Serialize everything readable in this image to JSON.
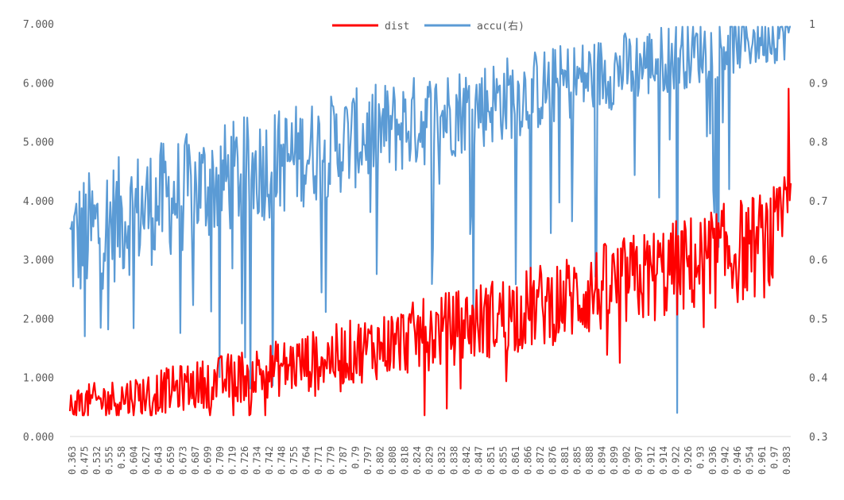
{
  "chart_data": {
    "type": "line",
    "title": "",
    "xlabel": "",
    "ylabel": "",
    "legend_position": "top-center",
    "grid": false,
    "y_left_range": [
      0,
      7
    ],
    "y_right_range": [
      0.3,
      1.0
    ],
    "y_left_ticks": [
      "0.000",
      "1.000",
      "2.000",
      "3.000",
      "4.000",
      "5.000",
      "6.000",
      "7.000"
    ],
    "y_right_ticks": [
      "0.3",
      "0.4",
      "0.5",
      "0.6",
      "0.7",
      "0.8",
      "0.9",
      "1"
    ],
    "x_tick_labels": [
      "0.363",
      "0.475",
      "0.532",
      "0.555",
      "0.58",
      "0.604",
      "0.627",
      "0.643",
      "0.659",
      "0.673",
      "0.687",
      "0.699",
      "0.709",
      "0.719",
      "0.726",
      "0.734",
      "0.742",
      "0.748",
      "0.755",
      "0.764",
      "0.771",
      "0.779",
      "0.787",
      "0.79",
      "0.797",
      "0.802",
      "0.808",
      "0.818",
      "0.824",
      "0.829",
      "0.832",
      "0.838",
      "0.842",
      "0.847",
      "0.851",
      "0.855",
      "0.861",
      "0.866",
      "0.872",
      "0.876",
      "0.881",
      "0.885",
      "0.888",
      "0.894",
      "0.899",
      "0.902",
      "0.907",
      "0.912",
      "0.914",
      "0.922",
      "0.926",
      "0.93",
      "0.936",
      "0.942",
      "0.946",
      "0.954",
      "0.961",
      "0.97",
      "0.983"
    ],
    "series": [
      {
        "name": "dist",
        "axis": "left",
        "color": "#ff0000",
        "trend_start": 0.55,
        "trend_end": 3.4,
        "spike_end": 5.9
      },
      {
        "name": "accu(右)",
        "axis": "right",
        "color": "#5b9bd5",
        "trend_start": 0.62,
        "trend_end": 0.99
      }
    ]
  }
}
